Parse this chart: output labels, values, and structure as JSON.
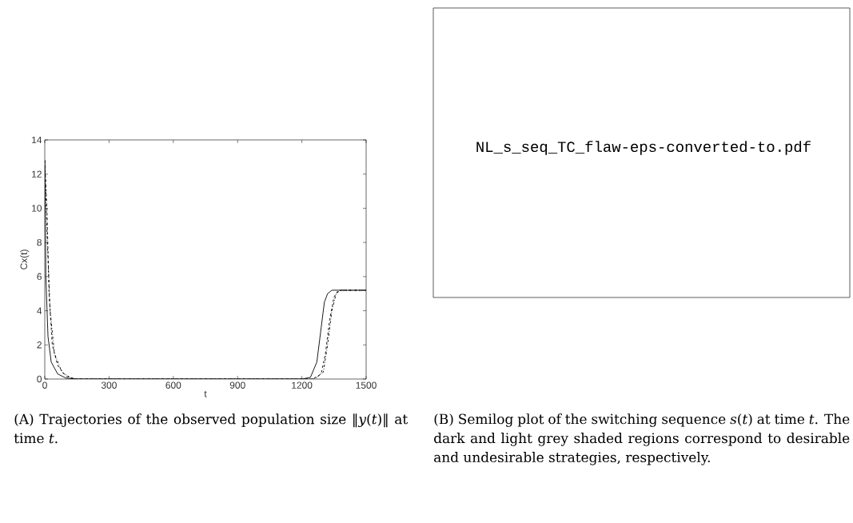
{
  "chart_data": [
    {
      "type": "line",
      "xlabel": "t",
      "ylabel": "Cx(t)",
      "xlim": [
        0,
        1500
      ],
      "ylim": [
        0,
        14
      ],
      "xticks": [
        0,
        300,
        600,
        900,
        1200,
        1500
      ],
      "yticks": [
        0,
        2,
        4,
        6,
        8,
        10,
        12,
        14
      ],
      "series": [
        {
          "color": "#000000",
          "line_style": "solid",
          "x": [
            0,
            5,
            15,
            30,
            60,
            100,
            150,
            1200,
            1240,
            1270,
            1290,
            1305,
            1320,
            1340,
            1500
          ],
          "values": [
            12.8,
            6,
            2.5,
            1,
            0.3,
            0.05,
            0,
            0,
            0.1,
            1,
            3,
            4.5,
            5.0,
            5.2,
            5.2
          ]
        },
        {
          "color": "#000000",
          "line_style": "dashed",
          "x": [
            0,
            10,
            20,
            35,
            60,
            100,
            150,
            1250,
            1290,
            1310,
            1330,
            1350,
            1370,
            1500
          ],
          "values": [
            12.8,
            10,
            5,
            2,
            0.8,
            0.15,
            0,
            0,
            0.3,
            1.5,
            3.5,
            4.8,
            5.2,
            5.2
          ]
        },
        {
          "color": "#000000",
          "line_style": "dashdot",
          "x": [
            0,
            12,
            25,
            45,
            80,
            130,
            1260,
            1300,
            1320,
            1340,
            1360,
            1380,
            1500
          ],
          "values": [
            12.8,
            8,
            4,
            1.5,
            0.4,
            0,
            0,
            0.4,
            2,
            4,
            5.0,
            5.2,
            5.2
          ]
        }
      ],
      "annotations": [
        "(A) Trajectories of the observed population size ‖*y*(*t*)‖ at time *t*."
      ]
    },
    {
      "type": "other",
      "annotations": [
        "NL_s_seq_TC_flaw-eps-converted-to.pdf",
        "(B) Semilog plot of the switching sequence *s*(*t*) at time *t*. The dark and light grey shaded regions correspond to desirable and undesirable strategies, respectively."
      ]
    }
  ]
}
